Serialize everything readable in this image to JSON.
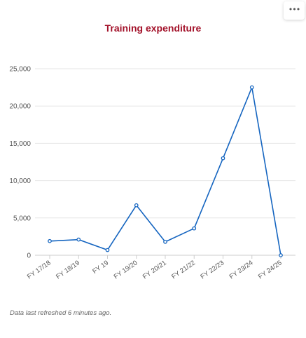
{
  "menu": {
    "icon": "more-horizontal-icon",
    "glyph": "•••"
  },
  "footnote": "Data last refreshed 6 minutes ago.",
  "colors": {
    "title": "#a3122a",
    "line": "#1565c0",
    "grid": "#e6e6e6"
  },
  "chart_data": {
    "type": "line",
    "title": "Training expenditure",
    "xlabel": "",
    "ylabel": "",
    "categories": [
      "FY 17/18",
      "FY 18/19",
      "FY 19",
      "FY 19/20",
      "FY 20/21",
      "FY 21/22",
      "FY 22/23",
      "FY 23/24",
      "FY 24/25"
    ],
    "series": [
      {
        "values": [
          1900,
          2100,
          700,
          6700,
          1800,
          3600,
          13000,
          22500,
          0
        ]
      }
    ],
    "ylim": [
      0,
      25000
    ],
    "yticks": [
      0,
      5000,
      10000,
      15000,
      20000,
      25000
    ],
    "ytick_labels": [
      "0",
      "5,000",
      "10,000",
      "15,000",
      "20,000",
      "25,000"
    ],
    "grid": true,
    "legend": "none"
  }
}
